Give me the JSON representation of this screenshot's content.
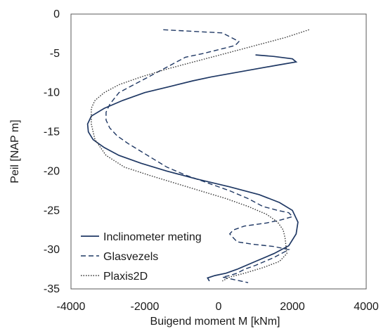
{
  "chart_data": {
    "type": "line",
    "xlabel": "Buigend moment M [kNm]",
    "ylabel": "Peil  [NAP m]",
    "xlim": [
      -4000,
      4000
    ],
    "ylim": [
      -35,
      0
    ],
    "xticks": [
      -4000,
      -2000,
      0,
      2000,
      4000
    ],
    "yticks": [
      0,
      -5,
      -10,
      -15,
      -20,
      -25,
      -30,
      -35
    ],
    "grid": false,
    "legend_position": "bottom-left",
    "series": [
      {
        "name": "Inclinometer meting",
        "style": "solid",
        "color": "#1f3864",
        "x": [
          1000,
          1500,
          2000,
          2100,
          1600,
          1000,
          400,
          -200,
          -700,
          -1300,
          -2000,
          -2600,
          -3100,
          -3450,
          -3550,
          -3530,
          -3400,
          -3100,
          -2700,
          -2100,
          -1400,
          -600,
          300,
          1100,
          1650,
          2000,
          2150,
          2100,
          1900,
          1500,
          1000,
          500,
          200,
          -100,
          -300,
          -250
        ],
        "y": [
          -5.2,
          -5.4,
          -5.7,
          -6.1,
          -6.5,
          -7.0,
          -7.5,
          -8.0,
          -8.5,
          -9.2,
          -10.0,
          -11.0,
          -12.0,
          -13.0,
          -14.0,
          -15.0,
          -16.0,
          -17.0,
          -18.0,
          -19.0,
          -20.0,
          -21.0,
          -22.0,
          -23.0,
          -24.0,
          -25.0,
          -26.5,
          -28.0,
          -29.5,
          -30.5,
          -31.5,
          -32.5,
          -33.0,
          -33.3,
          -33.6,
          -34.0
        ]
      },
      {
        "name": "Glasvezels",
        "style": "dashed",
        "color": "#1f3864",
        "x": [
          -1500,
          -700,
          100,
          350,
          550,
          450,
          200,
          -400,
          -900,
          -1300,
          -1900,
          -2300,
          -2700,
          -2950,
          -3050,
          -3050,
          -2950,
          -2750,
          -2450,
          -2100,
          -1750,
          -1400,
          -900,
          -300,
          300,
          800,
          1200,
          1600,
          1900,
          2000,
          1700,
          1300,
          700,
          400,
          300,
          400,
          500,
          900,
          1500,
          1900,
          1500,
          1000,
          700,
          500,
          300,
          100,
          300,
          500,
          800
        ],
        "y": [
          -2.0,
          -2.2,
          -2.4,
          -3.0,
          -3.5,
          -4.0,
          -4.3,
          -5.0,
          -5.5,
          -6.5,
          -8.0,
          -9.0,
          -10.0,
          -11.5,
          -12.5,
          -13.5,
          -14.5,
          -15.5,
          -16.5,
          -17.5,
          -18.5,
          -19.5,
          -20.5,
          -21.5,
          -22.5,
          -23.5,
          -24.5,
          -25.0,
          -25.3,
          -25.8,
          -26.2,
          -26.6,
          -27.0,
          -27.5,
          -28.0,
          -28.5,
          -29.0,
          -29.3,
          -29.6,
          -30.0,
          -31.0,
          -32.0,
          -32.5,
          -33.0,
          -33.3,
          -33.5,
          -33.7,
          -33.9,
          -34.2
        ]
      },
      {
        "name": "Plaxis2D",
        "style": "dotted",
        "color": "#333333",
        "x": [
          2450,
          1800,
          1000,
          200,
          -600,
          -1400,
          -2100,
          -2700,
          -3100,
          -3350,
          -3450,
          -3450,
          -3350,
          -3050,
          -2550,
          -1900,
          -1200,
          -500,
          200,
          800,
          1300,
          1600,
          1750,
          1800,
          1850,
          1650,
          1200,
          700,
          300,
          100
        ],
        "y": [
          -2.0,
          -3.0,
          -4.0,
          -5.0,
          -6.0,
          -7.0,
          -8.0,
          -9.0,
          -10.0,
          -11.0,
          -12.0,
          -14.0,
          -16.0,
          -18.0,
          -19.5,
          -20.5,
          -21.5,
          -22.5,
          -23.5,
          -24.5,
          -25.5,
          -26.5,
          -27.5,
          -28.5,
          -30.5,
          -31.5,
          -32.3,
          -33.0,
          -33.5,
          -34.0
        ]
      }
    ]
  }
}
